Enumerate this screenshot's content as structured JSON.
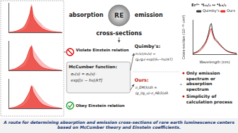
{
  "chart_data": [
    {
      "type": "area",
      "xlim": [
        1400,
        1700
      ],
      "ylim": [
        0,
        8
      ],
      "tick_labels": false,
      "grid": false,
      "x": [
        1400,
        1440,
        1480,
        1500,
        1520,
        1530,
        1540,
        1560,
        1580,
        1600,
        1640,
        1700
      ],
      "series": [
        {
          "color": "#e8261c",
          "values": [
            0,
            0.3,
            1.2,
            2.5,
            5,
            7,
            4,
            2.5,
            1.5,
            0.8,
            0.2,
            0
          ]
        },
        {
          "color": "#f4a0a0",
          "values": [
            0,
            0.1,
            0.5,
            1.2,
            3.5,
            7.5,
            5,
            3.5,
            2.5,
            1.5,
            0.5,
            0
          ]
        }
      ]
    },
    {
      "type": "area",
      "xlim": [
        1400,
        1700
      ],
      "ylim": [
        0,
        8
      ],
      "tick_labels": false,
      "grid": false,
      "x": [
        1400,
        1440,
        1480,
        1500,
        1520,
        1530,
        1540,
        1560,
        1580,
        1600,
        1640,
        1700
      ],
      "series": [
        {
          "color": "#e8261c",
          "values": [
            0,
            0.5,
            1.8,
            3.2,
            5.8,
            6.5,
            3.6,
            2.2,
            1.2,
            0.6,
            0.2,
            0
          ]
        },
        {
          "color": "#f4a0a0",
          "values": [
            0,
            0.2,
            0.8,
            1.6,
            4,
            6.8,
            5.5,
            4,
            2.8,
            1.8,
            0.6,
            0
          ]
        }
      ]
    },
    {
      "type": "area",
      "xlim": [
        1400,
        1700
      ],
      "ylim": [
        0,
        8
      ],
      "tick_labels": false,
      "grid": false,
      "x": [
        1400,
        1440,
        1480,
        1500,
        1520,
        1530,
        1540,
        1560,
        1580,
        1600,
        1640,
        1700
      ],
      "series": [
        {
          "color": "#e8261c",
          "values": [
            0,
            0.4,
            1.5,
            2.8,
            4.6,
            6,
            4.4,
            2.8,
            1.6,
            0.9,
            0.3,
            0
          ]
        },
        {
          "color": "#f4a0a0",
          "values": [
            0,
            0.1,
            0.6,
            1.4,
            3,
            6.2,
            5.8,
            4.2,
            3,
            1.9,
            0.7,
            0
          ]
        }
      ]
    },
    {
      "type": "line",
      "title": "Er³⁺ ⁴I₁₃/₂ ↔ ⁴I₁₅/₂",
      "x_label": "Wavelength (nm)",
      "y_label": "Cross-section (10⁻²¹ cm²)",
      "xlim": [
        1450,
        1650
      ],
      "ylim": [
        0,
        8
      ],
      "tick_labels": false,
      "grid": false,
      "legend": "top-right",
      "x": [
        1450,
        1470,
        1490,
        1500,
        1510,
        1520,
        1530,
        1535,
        1540,
        1550,
        1560,
        1570,
        1580,
        1600,
        1620,
        1650
      ],
      "series": [
        {
          "name": "Quimby's",
          "color": "#333333",
          "values": [
            0.2,
            0.6,
            1.5,
            2.2,
            3,
            4.5,
            6.8,
            7.2,
            5.5,
            3.8,
            3.2,
            2.6,
            2,
            1,
            0.5,
            0.2
          ]
        },
        {
          "name": "Ours",
          "color": "#e8261c",
          "values": [
            0.1,
            0.4,
            1.1,
            1.8,
            2.6,
            3.9,
            5.6,
            6,
            4.8,
            3.4,
            2.9,
            2.3,
            1.8,
            0.9,
            0.4,
            0.1
          ]
        }
      ]
    }
  ],
  "header": {
    "left": "absorption",
    "center": "RE",
    "right": "emission",
    "sub": "cross-sections"
  },
  "violate": "Violate Einstein relation",
  "mccumber": {
    "title": "McCumber function:",
    "lines": [
      "σₑ(ν) = σₐ(ν)·",
      "exp[(ε − hν)/kT]"
    ]
  },
  "obey": "Obey Einstein relation",
  "quimby": {
    "title": "Quimby's:",
    "lines": [
      "σₑ(ν)/σₐ(ν) =",
      "(g₁/g₂)·exp[(E₀−hν)/kT]"
    ]
  },
  "ours": {
    "title": "Ours:",
    "lines": [
      "σ_EM(λ)dλ =",
      "(g_l/g_u)·σ_AB(λ)dλ"
    ]
  },
  "advantages": [
    "Only emission spectrum or absorption spectrum",
    "Simplicity of calculation process"
  ],
  "caption": "A route for determining absorption and emission cross-sections of rare earth luminescence centers based on McCumber theory and Einstein coefficients."
}
